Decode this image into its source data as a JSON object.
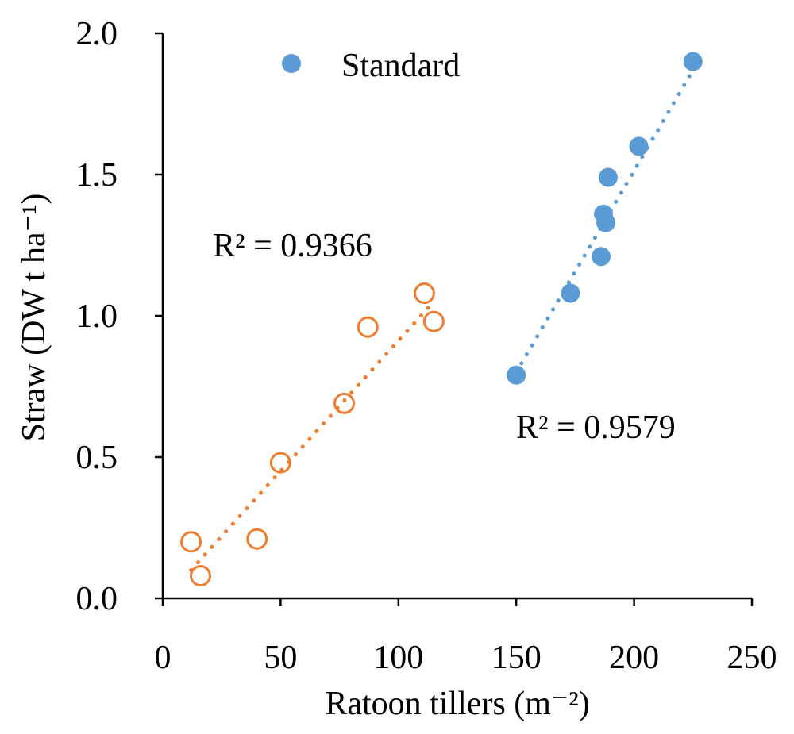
{
  "chart_data": {
    "type": "scatter",
    "xlabel": "Ratoon tillers (m⁻²)",
    "ylabel": "Straw (DW t ha⁻¹)",
    "xlim": [
      0,
      250
    ],
    "ylim": [
      0,
      2.0
    ],
    "x_ticks": [
      "0",
      "50",
      "100",
      "150",
      "200",
      "250"
    ],
    "y_ticks": [
      "0.0",
      "0.5",
      "1.0",
      "1.5",
      "2.0"
    ],
    "grid": false,
    "legend_position": "top",
    "series": [
      {
        "name": "Standard",
        "color": "#5B9BD5",
        "marker": "filled-circle",
        "in_legend": true,
        "points": [
          {
            "x": 150,
            "y": 0.79
          },
          {
            "x": 173,
            "y": 1.08
          },
          {
            "x": 186,
            "y": 1.21
          },
          {
            "x": 187,
            "y": 1.36
          },
          {
            "x": 188,
            "y": 1.33
          },
          {
            "x": 189,
            "y": 1.49
          },
          {
            "x": 202,
            "y": 1.6
          },
          {
            "x": 225,
            "y": 1.9
          }
        ],
        "trendline": {
          "x0": 150,
          "y0": 0.8,
          "x1": 225,
          "y1": 1.87,
          "style": "dotted"
        },
        "r2_label": "R² = 0.9579"
      },
      {
        "name": "",
        "color": "#ED7D31",
        "marker": "open-circle",
        "in_legend": false,
        "points": [
          {
            "x": 12,
            "y": 0.2
          },
          {
            "x": 16,
            "y": 0.08
          },
          {
            "x": 40,
            "y": 0.21
          },
          {
            "x": 50,
            "y": 0.48
          },
          {
            "x": 77,
            "y": 0.69
          },
          {
            "x": 87,
            "y": 0.96
          },
          {
            "x": 111,
            "y": 1.08
          },
          {
            "x": 115,
            "y": 0.98
          }
        ],
        "trendline": {
          "x0": 12,
          "y0": 0.1,
          "x1": 115,
          "y1": 1.05,
          "style": "dotted"
        },
        "r2_label": "R² = 0.9366"
      }
    ]
  }
}
